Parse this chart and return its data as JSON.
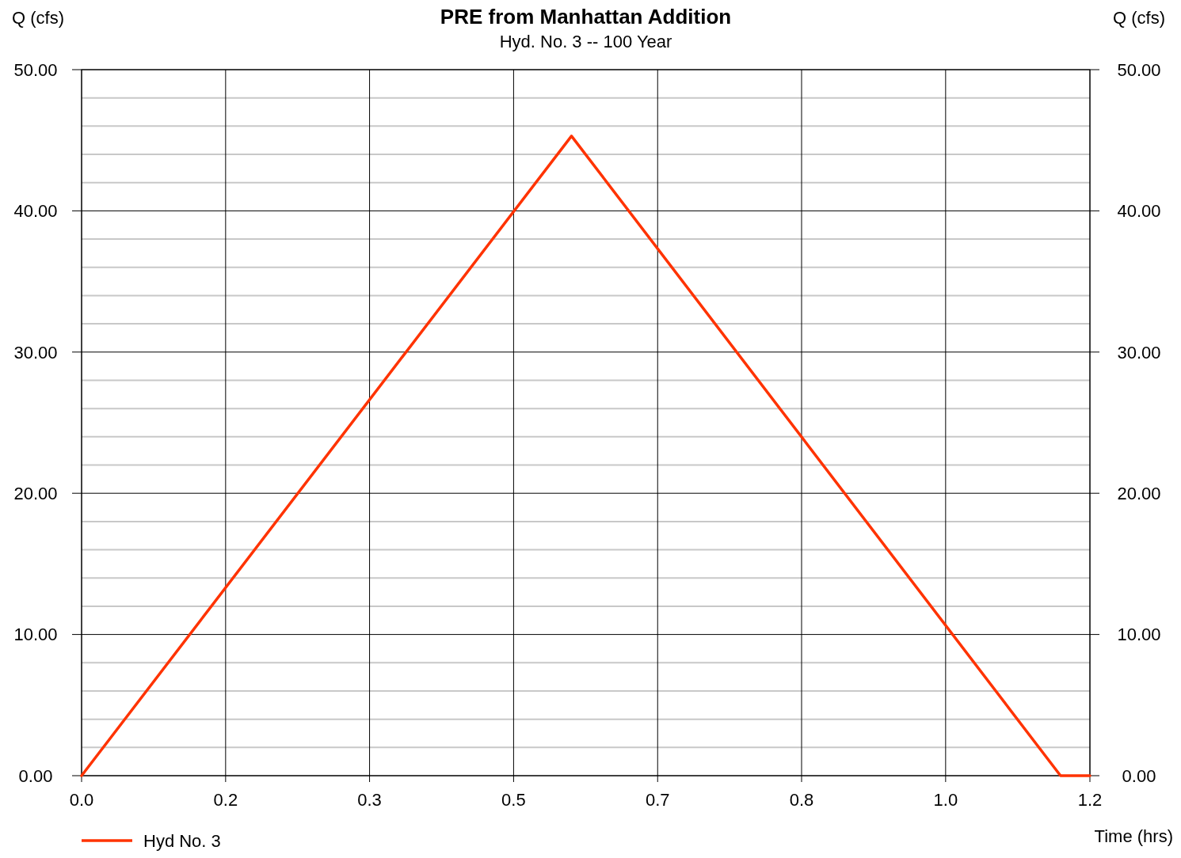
{
  "chart_data": {
    "type": "line",
    "title": "PRE from Manhattan Addition",
    "subtitle": "Hyd. No. 3 -- 100 Year",
    "xlabel": "Time (hrs)",
    "ylabel": "Q (cfs)",
    "y2label": "Q (cfs)",
    "xlim": [
      0,
      1.167
    ],
    "xticks": [
      {
        "value": 0,
        "label": "0.0"
      },
      {
        "value": 0.1667,
        "label": "0.2"
      },
      {
        "value": 0.3333,
        "label": "0.3"
      },
      {
        "value": 0.5,
        "label": "0.5"
      },
      {
        "value": 0.6667,
        "label": "0.7"
      },
      {
        "value": 0.8333,
        "label": "0.8"
      },
      {
        "value": 1.0,
        "label": "1.0"
      },
      {
        "value": 1.167,
        "label": "1.2"
      }
    ],
    "ylim": [
      0,
      50
    ],
    "yticks": [
      {
        "value": 0,
        "label": "0.00"
      },
      {
        "value": 2,
        "label": null
      },
      {
        "value": 4,
        "label": null
      },
      {
        "value": 6,
        "label": null
      },
      {
        "value": 8,
        "label": null
      },
      {
        "value": 10,
        "label": "10.00"
      },
      {
        "value": 12,
        "label": null
      },
      {
        "value": 14,
        "label": null
      },
      {
        "value": 16,
        "label": null
      },
      {
        "value": 18,
        "label": null
      },
      {
        "value": 20,
        "label": "20.00"
      },
      {
        "value": 22,
        "label": null
      },
      {
        "value": 24,
        "label": null
      },
      {
        "value": 26,
        "label": null
      },
      {
        "value": 28,
        "label": null
      },
      {
        "value": 30,
        "label": "30.00"
      },
      {
        "value": 32,
        "label": null
      },
      {
        "value": 34,
        "label": null
      },
      {
        "value": 36,
        "label": null
      },
      {
        "value": 38,
        "label": null
      },
      {
        "value": 40,
        "label": "40.00"
      },
      {
        "value": 42,
        "label": null
      },
      {
        "value": 44,
        "label": null
      },
      {
        "value": 46,
        "label": null
      },
      {
        "value": 48,
        "label": null
      },
      {
        "value": 50,
        "label": "50.00"
      }
    ],
    "y2lim": [
      0,
      50
    ],
    "y2ticks": [
      {
        "value": 0,
        "label": "0.00"
      },
      {
        "value": 10,
        "label": "10.00"
      },
      {
        "value": 20,
        "label": "20.00"
      },
      {
        "value": 30,
        "label": "30.00"
      },
      {
        "value": 40,
        "label": "40.00"
      },
      {
        "value": 50,
        "label": "50.00"
      }
    ],
    "grid": true,
    "legend": "bottom left",
    "marker": "none",
    "line_style": "solid",
    "series": [
      {
        "name": "Hyd No. 3",
        "color": "#ff3300",
        "x": [
          0,
          0.567,
          1.133,
          1.167
        ],
        "values": [
          0,
          45.3,
          0,
          0
        ]
      }
    ]
  }
}
